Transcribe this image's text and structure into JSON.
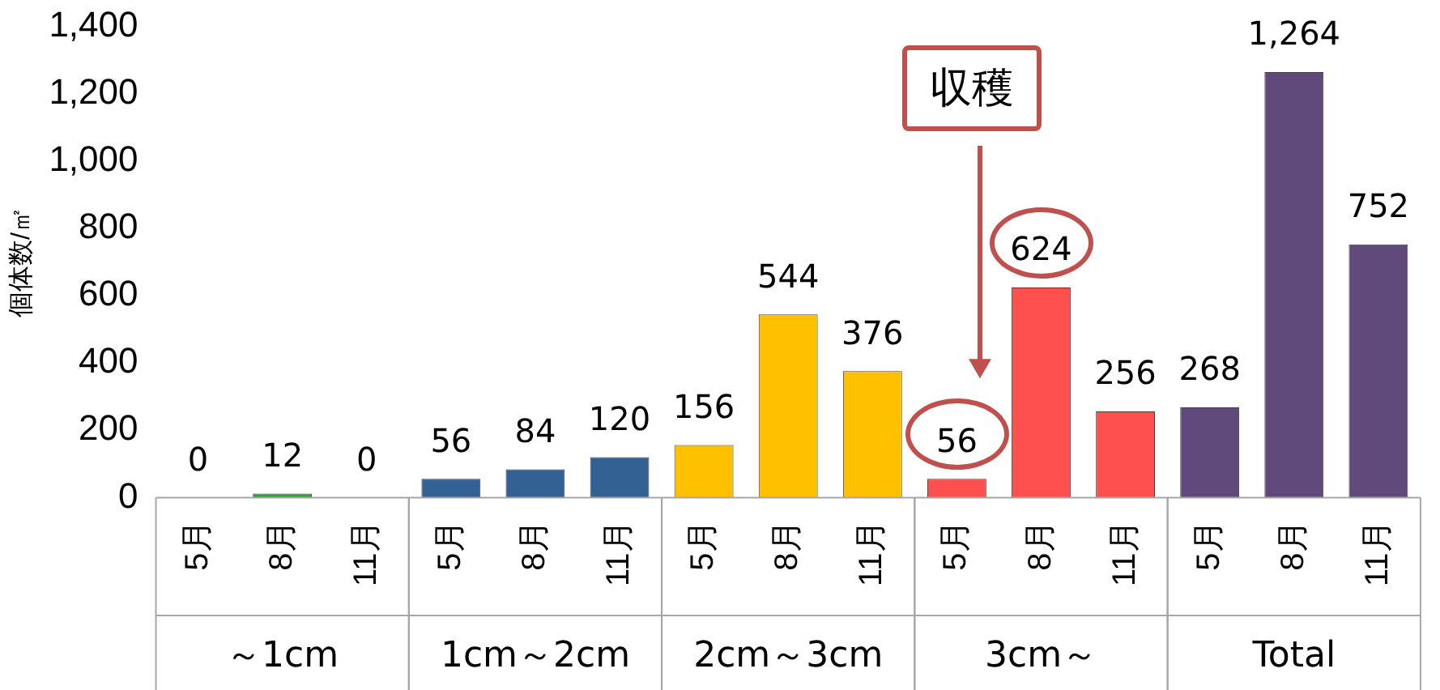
{
  "chart_data": {
    "type": "bar",
    "ylabel": "個体数/㎡",
    "categories": [
      "5月",
      "8月",
      "11月",
      "5月",
      "8月",
      "11月",
      "5月",
      "8月",
      "11月",
      "5月",
      "8月",
      "11月",
      "5月",
      "8月",
      "11月"
    ],
    "values": [
      0,
      12,
      0,
      56,
      84,
      120,
      156,
      544,
      376,
      56,
      624,
      256,
      268,
      1264,
      752
    ],
    "value_labels": [
      "0",
      "12",
      "0",
      "56",
      "84",
      "120",
      "156",
      "544",
      "376",
      "56",
      "624",
      "256",
      "268",
      "1,264",
      "752"
    ],
    "colors": [
      "#2e9e3c",
      "#2e9e3c",
      "#2e9e3c",
      "#336194",
      "#336194",
      "#336194",
      "#ffc000",
      "#ffc000",
      "#ffc000",
      "#ff5050",
      "#ff5050",
      "#ff5050",
      "#604a7b",
      "#604a7b",
      "#604a7b"
    ],
    "ylim": [
      0,
      1400
    ],
    "yticks": [
      0,
      200,
      400,
      600,
      800,
      {
        "value": 1000,
        "label": "1,000"
      },
      {
        "value": 1200,
        "label": "1,200"
      },
      {
        "value": 1400,
        "label": "1,400"
      }
    ],
    "grid": false,
    "legend": false,
    "annotations": [
      "収穫",
      "～1cm",
      "1cm～2cm",
      "2cm～3cm",
      "3cm～",
      "Total"
    ]
  }
}
